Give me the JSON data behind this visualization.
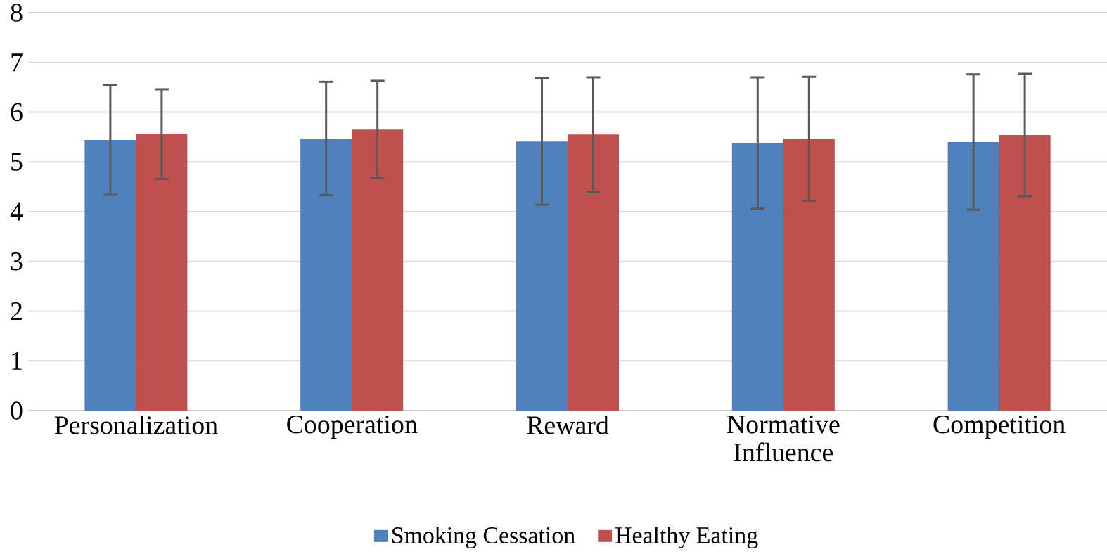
{
  "chart_data": {
    "type": "bar",
    "categories": [
      "Personalization",
      "Cooperation",
      "Reward",
      "Normative Influence",
      "Competition"
    ],
    "series": [
      {
        "name": "Smoking Cessation",
        "color": "#4f81bd",
        "values": [
          5.44,
          5.47,
          5.41,
          5.38,
          5.4
        ],
        "errors": [
          1.1,
          1.14,
          1.27,
          1.32,
          1.36
        ]
      },
      {
        "name": "Healthy Eating",
        "color": "#c0504d",
        "values": [
          5.56,
          5.65,
          5.55,
          5.46,
          5.54
        ],
        "errors": [
          0.9,
          0.98,
          1.15,
          1.25,
          1.23
        ]
      }
    ],
    "ylim": [
      0,
      8
    ],
    "yticks": [
      0,
      1,
      2,
      3,
      4,
      5,
      6,
      7,
      8
    ],
    "grid": "y",
    "legend": "bottom"
  }
}
